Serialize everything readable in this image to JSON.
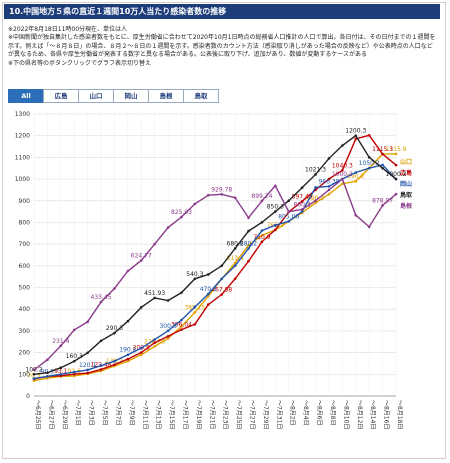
{
  "header": {
    "title": "10.中国地方５県の直近１週間10万人当たり感染者数の推移",
    "notes": [
      "※2022年8月18日11時00分現在、単位は人",
      "※中国新聞が独自集計した感染者数をもとに、厚生労働省に合わせて2020年10月1日時点の総務省人口推計の人口で算出。各日付は、その日付までの１週間を示す。例えば「～８月８日」の場合、８月２～８日の１週間を示す。感染者数のカウント方法（感染取り消しがあった場合の反映など）や公表時点の人口などが異なるため、各県や厚生労働省が発表する数字と異なる場合がある。公表後に取り下げ、追加があり、数値が変動するケースがある",
      "※下の県名等のボタンクリックでグラフ表示切り替え"
    ],
    "buttons": [
      "All",
      "広島",
      "山口",
      "岡山",
      "島根",
      "鳥取"
    ]
  },
  "chart_data": {
    "type": "line",
    "categories": [
      "～6月25日",
      "～6月27日",
      "～6月29日",
      "～7月1日",
      "～7月3日",
      "～7月5日",
      "～7月7日",
      "～7月9日",
      "～7月11日",
      "～7月13日",
      "～7月15日",
      "～7月17日",
      "～7月19日",
      "～7月21日",
      "～7月23日",
      "～7月25日",
      "～7月27日",
      "～7月29日",
      "～7月31日",
      "～8月2日",
      "～8月4日",
      "～8月6日",
      "～8月8日",
      "～8月10日",
      "～8月12日",
      "～8月14日",
      "～8月16日",
      "～8月18日"
    ],
    "series": [
      {
        "name": "山口",
        "color": "#e0a000",
        "values": [
          70.5,
          82.1,
          90.3,
          92.6,
          102.15,
          115.4,
          138.2,
          160.7,
          189.95,
          228.85,
          265.3,
          320.6,
          385.15,
          460.3,
          540.2,
          613.4,
          694.8,
          740.5,
          765.2,
          805.1,
          845.02,
          890.3,
          930.45,
          977.97,
          990.2,
          1050.4,
          1115.22,
          1115.9
        ]
      },
      {
        "name": "広島",
        "color": "#c00000",
        "values": [
          78.94,
          90.2,
          93.1,
          100.4,
          105.6,
          122.48,
          144.3,
          170.2,
          200.5,
          245.7,
          275.3,
          306.04,
          330.5,
          421.29,
          467.88,
          540.3,
          621.29,
          710.9,
          766.3,
          848.3,
          897.49,
          950.2,
          1000.4,
          1040.3,
          1185.6,
          1201.85,
          1115.3,
          1064.5
        ]
      },
      {
        "name": "岡山",
        "color": "#2255aa",
        "values": [
          80.3,
          90.5,
          100.2,
          110.6,
          120.1,
          140.3,
          160.5,
          190.2,
          220.4,
          260.3,
          300.6,
          350.2,
          410.5,
          470.3,
          540.41,
          600.3,
          680.2,
          762.45,
          787.4,
          805.06,
          850.2,
          961.73,
          966.38,
          1000.3,
          1030.46,
          1050.2,
          1065.3,
          1000.1
        ]
      },
      {
        "name": "鳥取",
        "color": "#222222",
        "values": [
          100.2,
          107.18,
          130.4,
          160.3,
          199.13,
          254.42,
          290.3,
          344.77,
          408.74,
          451.93,
          440.2,
          476.5,
          540.3,
          560.2,
          600.3,
          680.2,
          760.3,
          800.4,
          850.3,
          900.2,
          960.5,
          1021.3,
          1095.2,
          1154.8,
          1200.3,
          1100.2,
          1050.3,
          1000.2
        ]
      },
      {
        "name": "島根",
        "color": "#8a3a8a",
        "values": [
          120.25,
          167.18,
          231.4,
          304.86,
          341.96,
          433.45,
          495.44,
          576.05,
          624.77,
          700.46,
          776.61,
          825.03,
          885.53,
          925.91,
          929.78,
          913.99,
          821.75,
          899.24,
          969.12,
          849.5,
          860.3,
          900.5,
          950.2,
          1000.3,
          833.52,
          779.73,
          878.97,
          930.23
        ]
      }
    ],
    "ylim": [
      0,
      1300
    ],
    "yticks": [
      0,
      100,
      200,
      300,
      400,
      500,
      600,
      700,
      800,
      900,
      1000,
      1100,
      1200,
      1300
    ],
    "grid": true
  }
}
